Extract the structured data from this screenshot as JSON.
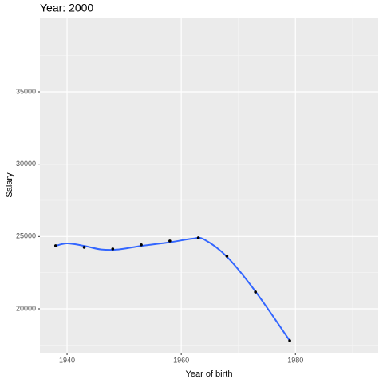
{
  "chart_data": {
    "type": "scatter",
    "title": "Year: 2000",
    "x_label": "Year of birth",
    "y_label": "Salary",
    "x": [
      1938,
      1943,
      1948,
      1953,
      1958,
      1963,
      1968,
      1973,
      1979
    ],
    "values": [
      24360,
      24250,
      24140,
      24420,
      24690,
      24910,
      23640,
      21160,
      17800
    ],
    "color": "#000000",
    "smooth": {
      "color": "#3366ff",
      "x": [
        1938,
        1940,
        1943,
        1946,
        1949,
        1953,
        1958,
        1962,
        1964,
        1968,
        1973,
        1979
      ],
      "values": [
        24350,
        24520,
        24350,
        24100,
        24100,
        24350,
        24600,
        24850,
        24800,
        23600,
        21200,
        17800
      ]
    },
    "xlim": [
      1935.24,
      1994.5
    ],
    "xticks": [
      1940,
      1960,
      1980
    ],
    "xminor": [
      1950,
      1970,
      1990
    ],
    "ylim": [
      16967,
      40128
    ],
    "yticks": [
      20000,
      25000,
      30000,
      35000
    ],
    "yminor": [
      17500,
      22500,
      27500,
      32500,
      37500
    ],
    "grid": true
  }
}
